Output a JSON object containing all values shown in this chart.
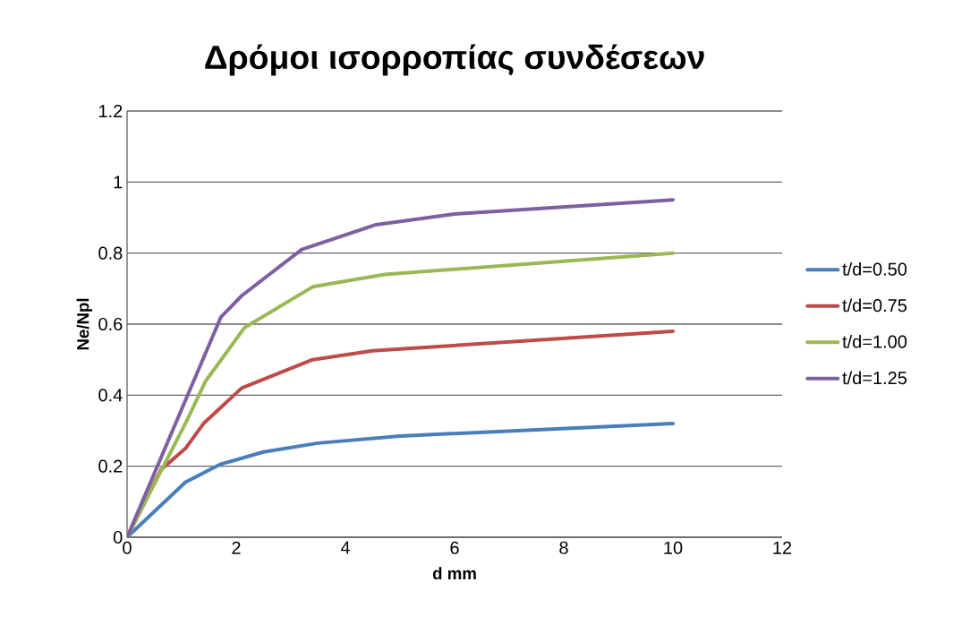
{
  "chart_data": {
    "type": "line",
    "title": "Δρόμοι ισορροπίας συνδέσεων",
    "xlabel": "d mm",
    "ylabel": "Ne/Npl",
    "xlim": [
      0,
      12
    ],
    "xticks": [
      0,
      2,
      4,
      6,
      8,
      10,
      12
    ],
    "ylim": [
      0,
      1.2
    ],
    "yticks": [
      0,
      0.2,
      0.4,
      0.6,
      0.8,
      1,
      1.2
    ],
    "grid": "y",
    "legend": "right",
    "marker": "none",
    "series": [
      {
        "name": "t/d=0.50",
        "color": "#4a7ebb",
        "x": [
          0,
          1.07,
          1.7,
          2.5,
          3.5,
          5,
          10
        ],
        "values": [
          0,
          0.155,
          0.205,
          0.24,
          0.265,
          0.285,
          0.32
        ]
      },
      {
        "name": "t/d=0.75",
        "color": "#be4b48",
        "x": [
          0,
          0.62,
          1.07,
          1.4,
          2.1,
          3.4,
          4.5,
          10
        ],
        "values": [
          0,
          0.19,
          0.25,
          0.32,
          0.42,
          0.5,
          0.525,
          0.58
        ]
      },
      {
        "name": "t/d=1.00",
        "color": "#98b954",
        "x": [
          0,
          1.1,
          1.44,
          2.15,
          3.4,
          4.72,
          10
        ],
        "values": [
          0,
          0.33,
          0.44,
          0.59,
          0.705,
          0.74,
          0.8
        ]
      },
      {
        "name": "t/d=1.25",
        "color": "#7d60a0",
        "x": [
          0,
          1.72,
          2.1,
          3.2,
          4.56,
          6,
          10
        ],
        "values": [
          0,
          0.62,
          0.68,
          0.81,
          0.88,
          0.91,
          0.95
        ]
      }
    ]
  }
}
